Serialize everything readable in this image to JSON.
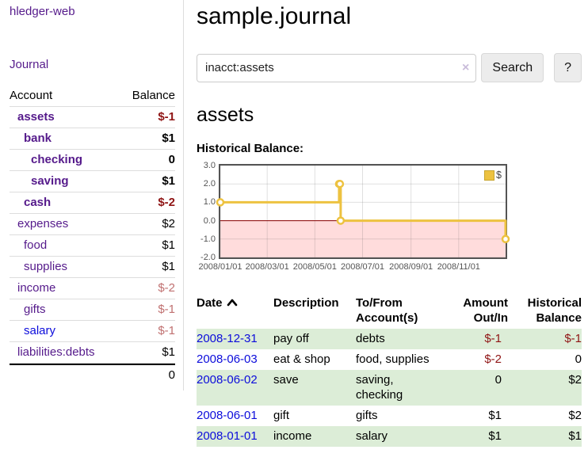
{
  "palette": {
    "link_purple": "#551a8b",
    "link_blue": "#0c0cdb",
    "negative_strong": "#8f1414",
    "negative_soft": "#c07070",
    "row_green": "#dcedd7",
    "chart_line": "#edc240",
    "chart_negative_bg": "#ffdcdc",
    "chart_zero_line": "#8b0000"
  },
  "sidebar": {
    "app_title": "hledger-web",
    "journal_link": "Journal",
    "account_header": "Account",
    "balance_header": "Balance",
    "accounts": [
      {
        "name": "assets",
        "balance": "$-1",
        "depth": 1,
        "matched": true,
        "tone": "neg",
        "link": "purple"
      },
      {
        "name": "bank",
        "balance": "$1",
        "depth": 2,
        "matched": true,
        "tone": "",
        "link": "purple"
      },
      {
        "name": "checking",
        "balance": "0",
        "depth": 3,
        "matched": true,
        "tone": "",
        "link": "purple"
      },
      {
        "name": "saving",
        "balance": "$1",
        "depth": 3,
        "matched": true,
        "tone": "",
        "link": "purple"
      },
      {
        "name": "cash",
        "balance": "$-2",
        "depth": 2,
        "matched": true,
        "tone": "neg",
        "link": "purple"
      },
      {
        "name": "expenses",
        "balance": "$2",
        "depth": 1,
        "matched": false,
        "tone": "",
        "link": "purple"
      },
      {
        "name": "food",
        "balance": "$1",
        "depth": 2,
        "matched": false,
        "tone": "",
        "link": "purple"
      },
      {
        "name": "supplies",
        "balance": "$1",
        "depth": 2,
        "matched": false,
        "tone": "",
        "link": "purple"
      },
      {
        "name": "income",
        "balance": "$-2",
        "depth": 1,
        "matched": false,
        "tone": "neg-soft",
        "link": "purple"
      },
      {
        "name": "gifts",
        "balance": "$-1",
        "depth": 2,
        "matched": false,
        "tone": "neg-soft",
        "link": "purple"
      },
      {
        "name": "salary",
        "balance": "$-1",
        "depth": 2,
        "matched": false,
        "tone": "neg-soft",
        "link": "blue"
      },
      {
        "name": "liabilities:debts",
        "balance": "$1",
        "depth": 1,
        "matched": false,
        "tone": "",
        "link": "purple"
      }
    ],
    "total": "0"
  },
  "main": {
    "title": "sample.journal",
    "search": {
      "value": "inacct:assets",
      "clear_label": "×",
      "search_button": "Search",
      "help_button": "?"
    },
    "account_heading": "assets",
    "chart_label": "Historical Balance:"
  },
  "chart_data": {
    "type": "line",
    "step": true,
    "title": "Historical Balance",
    "x": [
      "2008-01-01",
      "2008-06-01",
      "2008-06-02",
      "2008-06-03",
      "2008-12-31"
    ],
    "series": [
      {
        "name": "$",
        "values": [
          1,
          2,
          2,
          0,
          -1
        ]
      }
    ],
    "xrange": [
      "2008-01-01",
      "2008-12-31"
    ],
    "ylim": [
      -2,
      3
    ],
    "yticks": [
      3.0,
      2.0,
      1.0,
      0.0,
      -1.0,
      -2.0
    ],
    "xticks": [
      {
        "date": "2008-01-01",
        "label": "2008/01/01"
      },
      {
        "date": "2008-03-01",
        "label": "2008/03/01"
      },
      {
        "date": "2008-05-01",
        "label": "2008/05/01"
      },
      {
        "date": "2008-07-01",
        "label": "2008/07/01"
      },
      {
        "date": "2008-09-01",
        "label": "2008/09/01"
      },
      {
        "date": "2008-11-01",
        "label": "2008/11/01"
      }
    ],
    "grid": true,
    "legend": {
      "position": "top-right",
      "entries": [
        "$"
      ]
    },
    "negative_region_shaded": true
  },
  "register": {
    "headers": {
      "date": "Date",
      "description": "Description",
      "account": "To/From Account(s)",
      "amount": "Amount Out/In",
      "balance": "Historical Balance"
    },
    "rows": [
      {
        "date": "2008-12-31",
        "description": "pay off",
        "accounts": "debts",
        "amount": "$-1",
        "amount_tone": "neg",
        "balance": "$-1",
        "balance_tone": "neg"
      },
      {
        "date": "2008-06-03",
        "description": "eat & shop",
        "accounts": "food, supplies",
        "amount": "$-2",
        "amount_tone": "neg",
        "balance": "0",
        "balance_tone": ""
      },
      {
        "date": "2008-06-02",
        "description": "save",
        "accounts": "saving, checking",
        "amount": "0",
        "amount_tone": "",
        "balance": "$2",
        "balance_tone": ""
      },
      {
        "date": "2008-06-01",
        "description": "gift",
        "accounts": "gifts",
        "amount": "$1",
        "amount_tone": "",
        "balance": "$2",
        "balance_tone": ""
      },
      {
        "date": "2008-01-01",
        "description": "income",
        "accounts": "salary",
        "amount": "$1",
        "amount_tone": "",
        "balance": "$1",
        "balance_tone": ""
      }
    ]
  }
}
